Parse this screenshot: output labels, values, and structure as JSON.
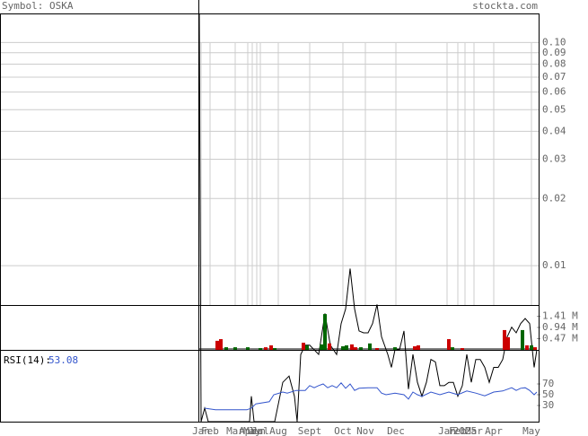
{
  "header": {
    "symbol": "Symbol: OSKA",
    "site": "stockta.com"
  },
  "chart_data": [
    {
      "type": "line",
      "log": true,
      "color": "#000000",
      "grid": true,
      "xlim": [
        0,
        376
      ],
      "x": [
        0,
        2,
        6,
        10,
        38,
        56,
        58,
        61,
        84,
        93,
        100,
        106,
        109,
        113,
        118,
        123,
        133,
        140,
        146,
        153,
        158,
        163,
        168,
        173,
        178,
        183,
        188,
        193,
        198,
        203,
        210,
        214,
        218,
        223,
        228,
        233,
        238,
        243,
        248,
        253,
        258,
        263,
        268,
        273,
        278,
        283,
        288,
        293,
        298,
        303,
        308,
        313,
        318,
        323,
        328,
        333,
        338,
        343,
        348,
        353,
        358,
        363,
        368,
        373,
        376
      ],
      "values": [
        0.135,
        0.002,
        0.0023,
        0.002,
        0.002,
        0.002,
        0.0026,
        0.002,
        0.002,
        0.003,
        0.0032,
        0.0026,
        0.002,
        0.004,
        0.0044,
        0.0044,
        0.004,
        0.0061,
        0.0044,
        0.004,
        0.0055,
        0.0064,
        0.0097,
        0.0064,
        0.0051,
        0.005,
        0.005,
        0.0055,
        0.0067,
        0.0048,
        0.004,
        0.0035,
        0.0042,
        0.0042,
        0.0051,
        0.0028,
        0.004,
        0.003,
        0.0026,
        0.003,
        0.0038,
        0.0037,
        0.0029,
        0.0029,
        0.003,
        0.003,
        0.0026,
        0.0029,
        0.004,
        0.003,
        0.0038,
        0.0038,
        0.0035,
        0.003,
        0.0035,
        0.0035,
        0.0038,
        0.0048,
        0.0053,
        0.005,
        0.0055,
        0.0058,
        0.0055,
        0.0035,
        0.0042
      ],
      "ylim": [
        0.002,
        0.135
      ],
      "yticks": [
        {
          "value": 0.1,
          "label": "0.10"
        },
        0.09,
        0.08,
        0.07,
        0.06,
        0.05,
        0.04,
        0.03,
        0.02,
        0.01
      ],
      "xticks": [
        {
          "value": 2,
          "label": "Jan"
        },
        {
          "value": 12,
          "label": "Feb"
        },
        {
          "value": 40,
          "label": "Mar"
        },
        {
          "value": 54,
          "label": "Apr"
        },
        {
          "value": 59,
          "label": "May"
        },
        {
          "value": 64,
          "label": "Jun"
        },
        {
          "value": 68,
          "label": "Jul"
        },
        {
          "value": 88,
          "label": "Aug"
        },
        {
          "value": 123,
          "label": "Sept"
        },
        {
          "value": 160,
          "label": "Oct"
        },
        {
          "value": 185,
          "label": "Nov"
        },
        {
          "value": 219,
          "label": "Dec"
        },
        {
          "value": 276,
          "label": "Jan"
        },
        {
          "value": 288,
          "label": "Feb"
        },
        {
          "value": 296,
          "label": "2025"
        },
        {
          "value": 306,
          "label": "Mar"
        },
        {
          "value": 328,
          "label": "Apr"
        },
        {
          "value": 370,
          "label": "May"
        }
      ]
    },
    {
      "type": "bar",
      "xlim": [
        0,
        376
      ],
      "x": [
        20,
        24,
        30,
        40,
        54,
        68,
        74,
        80,
        84,
        116,
        120,
        136,
        140,
        145,
        160,
        164,
        170,
        174,
        180,
        190,
        198,
        218,
        240,
        244,
        278,
        282,
        293,
        340,
        344,
        360,
        365,
        370,
        374
      ],
      "values": [
        380000,
        450000,
        110000,
        110000,
        110000,
        75000,
        110000,
        190000,
        75000,
        300000,
        190000,
        230000,
        1500000,
        270000,
        150000,
        190000,
        230000,
        110000,
        110000,
        270000,
        75000,
        110000,
        150000,
        190000,
        450000,
        110000,
        75000,
        830000,
        530000,
        830000,
        190000,
        190000,
        110000
      ],
      "colors": [
        "#cc0000",
        "#cc0000",
        "#006600",
        "#006600",
        "#006600",
        "#006600",
        "#cc0000",
        "#cc0000",
        "#006600",
        "#cc0000",
        "#006600",
        "#006600",
        "#006600",
        "#cc0000",
        "#006600",
        "#006600",
        "#cc0000",
        "#cc0000",
        "#006600",
        "#006600",
        "#cc0000",
        "#006600",
        "#cc0000",
        "#cc0000",
        "#cc0000",
        "#006600",
        "#cc0000",
        "#cc0000",
        "#cc0000",
        "#006600",
        "#cc0000",
        "#006600",
        "#cc0000"
      ],
      "ylim": [
        0,
        1880000
      ],
      "yticks": [
        {
          "value": 1410000,
          "label": "1.41 M"
        },
        {
          "value": 940000,
          "label": "0.94 M"
        },
        {
          "value": 470000,
          "label": "0.47 M"
        }
      ]
    },
    {
      "type": "line",
      "title": "RSI(14):",
      "current": 53.08,
      "color": "#3355cc",
      "xlim": [
        0,
        376
      ],
      "x": [
        6,
        18,
        53,
        58,
        63,
        78,
        83,
        93,
        98,
        108,
        118,
        123,
        128,
        133,
        138,
        143,
        148,
        153,
        158,
        163,
        168,
        173,
        178,
        188,
        198,
        203,
        208,
        218,
        228,
        233,
        238,
        243,
        248,
        258,
        268,
        278,
        288,
        298,
        308,
        318,
        328,
        338,
        348,
        353,
        358,
        363,
        368,
        373,
        376
      ],
      "values": [
        25,
        22,
        22,
        25,
        33,
        37,
        50,
        55,
        53,
        58,
        58,
        67,
        63,
        67,
        70,
        63,
        67,
        63,
        72,
        62,
        70,
        58,
        62,
        63,
        63,
        53,
        50,
        53,
        50,
        42,
        55,
        50,
        47,
        55,
        50,
        55,
        50,
        57,
        53,
        48,
        55,
        57,
        63,
        58,
        62,
        63,
        58,
        50,
        55
      ],
      "ylim": [
        0,
        100
      ],
      "yticks": [
        70,
        50,
        30
      ]
    }
  ]
}
